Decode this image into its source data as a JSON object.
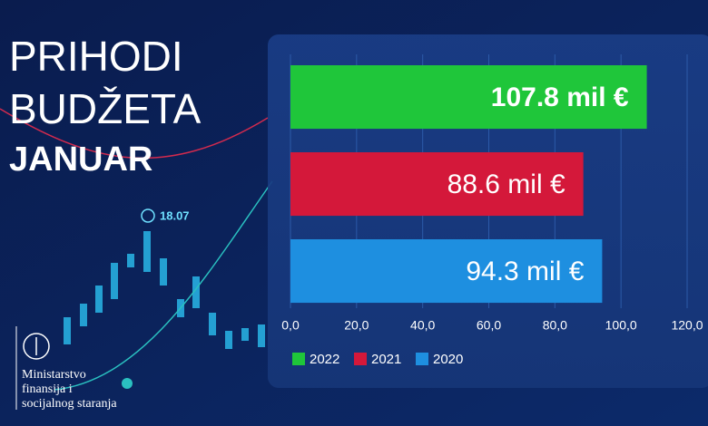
{
  "title": [
    "PRIHODI",
    "BUDŽETA",
    "JANUAR"
  ],
  "ministry": [
    "Ministarstvo",
    "finansija i",
    "socijalnog staranja"
  ],
  "chart_data": {
    "type": "bar",
    "orientation": "horizontal",
    "annotations": [
      "18.07"
    ],
    "series": [
      {
        "name": "2022",
        "color": "#1fc63a",
        "values": [
          107.8
        ],
        "value_labels": [
          "107.8 mil €"
        ]
      },
      {
        "name": "2021",
        "color": "#d4183a",
        "values": [
          88.6
        ],
        "value_labels": [
          "88.6 mil €"
        ]
      },
      {
        "name": "2020",
        "color": "#1e8fe0",
        "values": [
          94.3
        ],
        "value_labels": [
          "94.3 mil €"
        ]
      }
    ],
    "xlim": [
      0,
      120
    ],
    "xticks": [
      {
        "value": 0,
        "label": "0,0"
      },
      {
        "value": 20,
        "label": "20,0"
      },
      {
        "value": 40,
        "label": "40,0"
      },
      {
        "value": 60,
        "label": "60,0"
      },
      {
        "value": 80,
        "label": "80,0"
      },
      {
        "value": 100,
        "label": "100,0"
      },
      {
        "value": 120,
        "label": "120,0"
      }
    ],
    "grid": true,
    "legend": "bottom"
  }
}
